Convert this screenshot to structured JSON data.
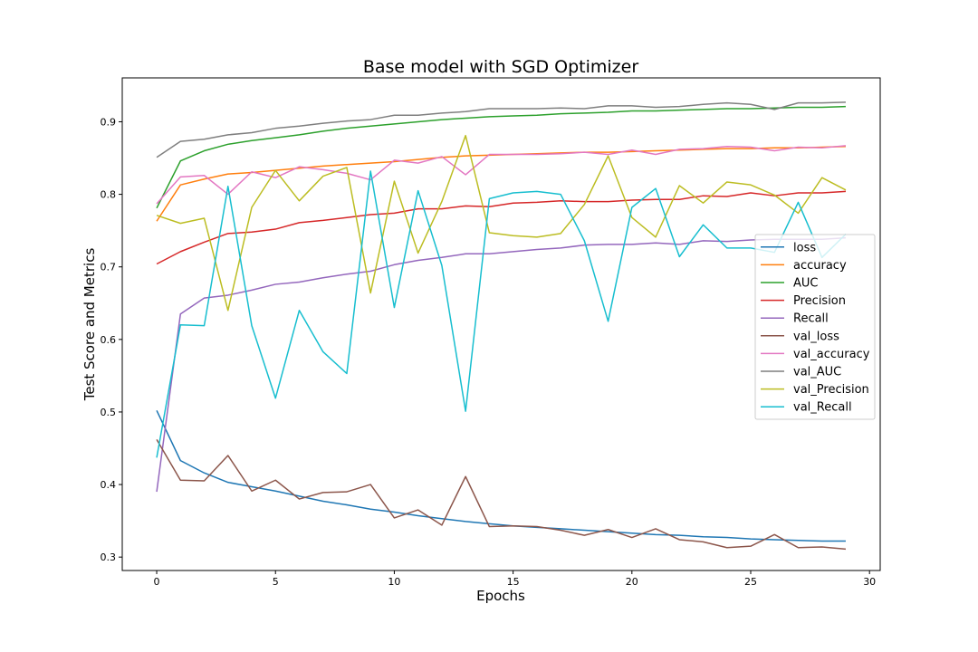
{
  "chart_data": {
    "type": "line",
    "title": "Base model with SGD Optimizer",
    "xlabel": "Epochs",
    "ylabel": "Test Score and Metrics",
    "xlim": [
      -1.45,
      30.45
    ],
    "ylim": [
      0.2815,
      0.9605
    ],
    "xticks": [
      0,
      5,
      10,
      15,
      20,
      25,
      30
    ],
    "yticks": [
      0.3,
      0.4,
      0.5,
      0.6,
      0.7,
      0.8,
      0.9
    ],
    "grid": false,
    "legend_position": "center-right",
    "x": [
      0,
      1,
      2,
      3,
      4,
      5,
      6,
      7,
      8,
      9,
      10,
      11,
      12,
      13,
      14,
      15,
      16,
      17,
      18,
      19,
      20,
      21,
      22,
      23,
      24,
      25,
      26,
      27,
      28,
      29
    ],
    "series": [
      {
        "name": "loss",
        "color": "#1f77b4",
        "values": [
          0.502,
          0.433,
          0.416,
          0.403,
          0.397,
          0.391,
          0.384,
          0.377,
          0.372,
          0.366,
          0.362,
          0.357,
          0.353,
          0.349,
          0.346,
          0.343,
          0.341,
          0.339,
          0.337,
          0.335,
          0.333,
          0.331,
          0.33,
          0.328,
          0.327,
          0.325,
          0.324,
          0.323,
          0.322,
          0.322
        ]
      },
      {
        "name": "accuracy",
        "color": "#ff7f0e",
        "values": [
          0.763,
          0.813,
          0.821,
          0.828,
          0.83,
          0.833,
          0.836,
          0.839,
          0.841,
          0.843,
          0.845,
          0.848,
          0.851,
          0.853,
          0.854,
          0.855,
          0.856,
          0.857,
          0.858,
          0.858,
          0.859,
          0.86,
          0.861,
          0.862,
          0.863,
          0.863,
          0.864,
          0.864,
          0.865,
          0.866
        ]
      },
      {
        "name": "AUC",
        "color": "#2ca02c",
        "values": [
          0.781,
          0.846,
          0.86,
          0.869,
          0.874,
          0.878,
          0.882,
          0.887,
          0.891,
          0.894,
          0.897,
          0.9,
          0.903,
          0.905,
          0.907,
          0.908,
          0.909,
          0.911,
          0.912,
          0.913,
          0.915,
          0.915,
          0.916,
          0.917,
          0.918,
          0.918,
          0.919,
          0.92,
          0.92,
          0.921
        ]
      },
      {
        "name": "Precision",
        "color": "#d62728",
        "values": [
          0.704,
          0.721,
          0.734,
          0.746,
          0.748,
          0.752,
          0.761,
          0.764,
          0.768,
          0.772,
          0.774,
          0.78,
          0.78,
          0.784,
          0.783,
          0.788,
          0.789,
          0.791,
          0.79,
          0.79,
          0.792,
          0.793,
          0.793,
          0.798,
          0.797,
          0.802,
          0.798,
          0.802,
          0.802,
          0.804
        ]
      },
      {
        "name": "Recall",
        "color": "#9467bd",
        "values": [
          0.39,
          0.635,
          0.657,
          0.661,
          0.668,
          0.676,
          0.679,
          0.685,
          0.69,
          0.694,
          0.703,
          0.709,
          0.713,
          0.718,
          0.718,
          0.721,
          0.724,
          0.726,
          0.73,
          0.731,
          0.731,
          0.733,
          0.731,
          0.736,
          0.735,
          0.737,
          0.738,
          0.738,
          0.738,
          0.74
        ]
      },
      {
        "name": "val_loss",
        "color": "#8c564b",
        "values": [
          0.462,
          0.406,
          0.405,
          0.44,
          0.391,
          0.406,
          0.38,
          0.389,
          0.39,
          0.4,
          0.354,
          0.365,
          0.344,
          0.411,
          0.342,
          0.343,
          0.342,
          0.337,
          0.33,
          0.338,
          0.327,
          0.339,
          0.324,
          0.321,
          0.313,
          0.315,
          0.331,
          0.313,
          0.314,
          0.311
        ]
      },
      {
        "name": "val_accuracy",
        "color": "#e377c2",
        "values": [
          0.787,
          0.824,
          0.826,
          0.8,
          0.831,
          0.823,
          0.838,
          0.834,
          0.829,
          0.82,
          0.847,
          0.843,
          0.852,
          0.827,
          0.855,
          0.855,
          0.855,
          0.856,
          0.858,
          0.855,
          0.861,
          0.855,
          0.862,
          0.863,
          0.866,
          0.865,
          0.86,
          0.865,
          0.864,
          0.867
        ]
      },
      {
        "name": "val_AUC",
        "color": "#7f7f7f",
        "values": [
          0.851,
          0.873,
          0.876,
          0.882,
          0.885,
          0.891,
          0.894,
          0.898,
          0.901,
          0.903,
          0.909,
          0.909,
          0.912,
          0.914,
          0.918,
          0.918,
          0.918,
          0.919,
          0.918,
          0.922,
          0.922,
          0.92,
          0.921,
          0.924,
          0.926,
          0.924,
          0.917,
          0.926,
          0.926,
          0.927
        ]
      },
      {
        "name": "val_Precision",
        "color": "#bcbd22",
        "values": [
          0.771,
          0.76,
          0.767,
          0.64,
          0.782,
          0.833,
          0.791,
          0.825,
          0.837,
          0.664,
          0.818,
          0.719,
          0.79,
          0.881,
          0.747,
          0.743,
          0.741,
          0.746,
          0.786,
          0.853,
          0.768,
          0.741,
          0.812,
          0.788,
          0.817,
          0.813,
          0.799,
          0.774,
          0.823,
          0.806
        ]
      },
      {
        "name": "val_Recall",
        "color": "#17becf",
        "values": [
          0.437,
          0.62,
          0.619,
          0.811,
          0.619,
          0.519,
          0.64,
          0.583,
          0.553,
          0.832,
          0.644,
          0.805,
          0.702,
          0.501,
          0.794,
          0.802,
          0.804,
          0.8,
          0.736,
          0.625,
          0.782,
          0.808,
          0.714,
          0.758,
          0.726,
          0.726,
          0.72,
          0.789,
          0.713,
          0.745
        ]
      }
    ]
  }
}
